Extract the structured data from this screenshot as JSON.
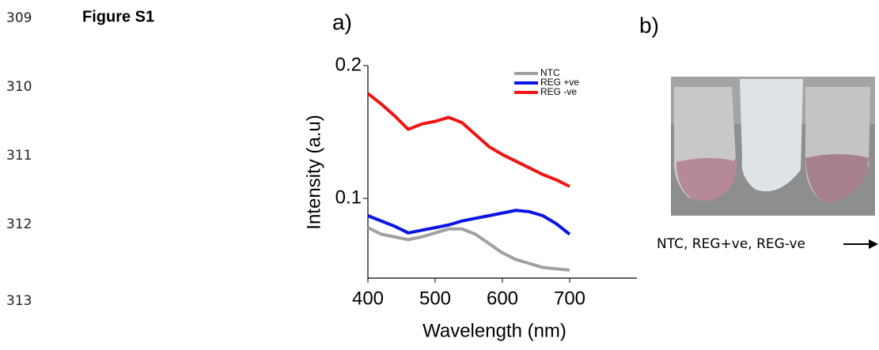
{
  "line_numbers": [
    "309",
    "310",
    "311",
    "312",
    "313"
  ],
  "figure_label": "Figure S1",
  "panel_a_label": "a)",
  "panel_b_label": "b)",
  "photo_caption": "NTC, REG+ve, REG-ve",
  "chart_data": {
    "type": "line",
    "xlabel": "Wavelength (nm)",
    "ylabel": "Intensity (a.u)",
    "x": [
      400,
      420,
      440,
      460,
      480,
      500,
      520,
      540,
      560,
      580,
      600,
      620,
      640,
      660,
      680,
      700
    ],
    "series": [
      {
        "name": "NTC",
        "color": "#a0a0a0",
        "values": [
          0.078,
          0.073,
          0.071,
          0.069,
          0.071,
          0.074,
          0.077,
          0.077,
          0.073,
          0.066,
          0.059,
          0.054,
          0.051,
          0.048,
          0.047,
          0.046
        ]
      },
      {
        "name": "REG +ve",
        "color": "#0a14e6",
        "values": [
          0.087,
          0.083,
          0.079,
          0.074,
          0.076,
          0.078,
          0.08,
          0.083,
          0.085,
          0.087,
          0.089,
          0.091,
          0.09,
          0.087,
          0.081,
          0.073
        ]
      },
      {
        "name": "REG -ve",
        "color": "#f01414",
        "values": [
          0.179,
          0.171,
          0.162,
          0.152,
          0.156,
          0.158,
          0.161,
          0.157,
          0.148,
          0.139,
          0.133,
          0.128,
          0.123,
          0.118,
          0.114,
          0.109
        ]
      }
    ],
    "xlim": [
      400,
      800
    ],
    "xticks": [
      400,
      500,
      600,
      700
    ],
    "ylim": [
      0.04,
      0.2
    ],
    "yticks": [
      0.1,
      0.2
    ],
    "legend": "upper right"
  }
}
